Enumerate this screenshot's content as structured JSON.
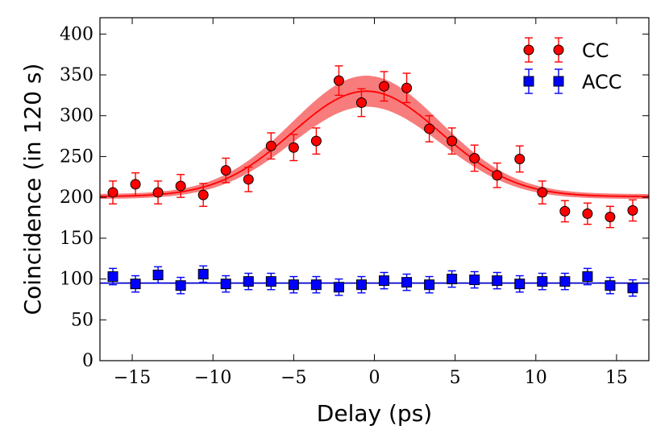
{
  "chart_data": {
    "type": "scatter",
    "title": "",
    "xlabel": "Delay (ps)",
    "ylabel": "Coincidence (in 120 s)",
    "xlim": [
      -17,
      17
    ],
    "ylim": [
      0,
      420
    ],
    "xticks": [
      -15,
      -10,
      -5,
      0,
      5,
      10,
      15
    ],
    "xtick_labels": [
      "−15",
      "−10",
      "−5",
      "0",
      "5",
      "10",
      "15"
    ],
    "yticks": [
      0,
      50,
      100,
      150,
      200,
      250,
      300,
      350,
      400
    ],
    "ytick_labels": [
      "0",
      "50",
      "100",
      "150",
      "200",
      "250",
      "300",
      "350",
      "400"
    ],
    "grid": false,
    "legend_position": "top-right",
    "series": [
      {
        "name": "CC",
        "marker": "circle",
        "color": "#ff0000",
        "x": [
          -16.2,
          -14.8,
          -13.4,
          -12.0,
          -10.6,
          -9.2,
          -7.8,
          -6.4,
          -5.0,
          -3.6,
          -2.2,
          -0.8,
          0.6,
          2.0,
          3.4,
          4.8,
          6.2,
          7.6,
          9.0,
          10.4,
          11.8,
          13.2,
          14.6,
          16.0
        ],
        "y": [
          206,
          216,
          206,
          214,
          203,
          233,
          222,
          263,
          261,
          269,
          343,
          316,
          336,
          334,
          284,
          269,
          248,
          227,
          247,
          206,
          183,
          180,
          176,
          184
        ],
        "yerr": [
          14,
          14,
          14,
          14,
          14,
          15,
          15,
          16,
          16,
          16,
          18,
          17,
          18,
          18,
          16,
          16,
          16,
          15,
          16,
          14,
          13,
          13,
          13,
          13
        ]
      },
      {
        "name": "ACC",
        "marker": "square",
        "color": "#0000ff",
        "x": [
          -16.2,
          -14.8,
          -13.4,
          -12.0,
          -10.6,
          -9.2,
          -7.8,
          -6.4,
          -5.0,
          -3.6,
          -2.2,
          -0.8,
          0.6,
          2.0,
          3.4,
          4.8,
          6.2,
          7.6,
          9.0,
          10.4,
          11.8,
          13.2,
          14.6,
          16.0
        ],
        "y": [
          103,
          94,
          105,
          92,
          106,
          94,
          97,
          97,
          93,
          93,
          90,
          93,
          98,
          96,
          93,
          100,
          99,
          98,
          94,
          97,
          97,
          103,
          92,
          89
        ],
        "yerr": [
          10,
          10,
          10,
          10,
          10,
          10,
          10,
          10,
          10,
          10,
          10,
          10,
          10,
          10,
          10,
          10,
          10,
          10,
          10,
          10,
          10,
          10,
          10,
          10
        ]
      }
    ],
    "fit": {
      "CC": {
        "model": "gaussian",
        "baseline": 201,
        "amplitude": 129,
        "center": -0.5,
        "sigma": 4.6,
        "band_halfwidth_peak": 19,
        "band_halfwidth_base": 3,
        "color": "#ff0000",
        "band_color": "#f87c7c"
      },
      "ACC": {
        "model": "constant",
        "value": 95,
        "color": "#0000cc"
      }
    }
  }
}
